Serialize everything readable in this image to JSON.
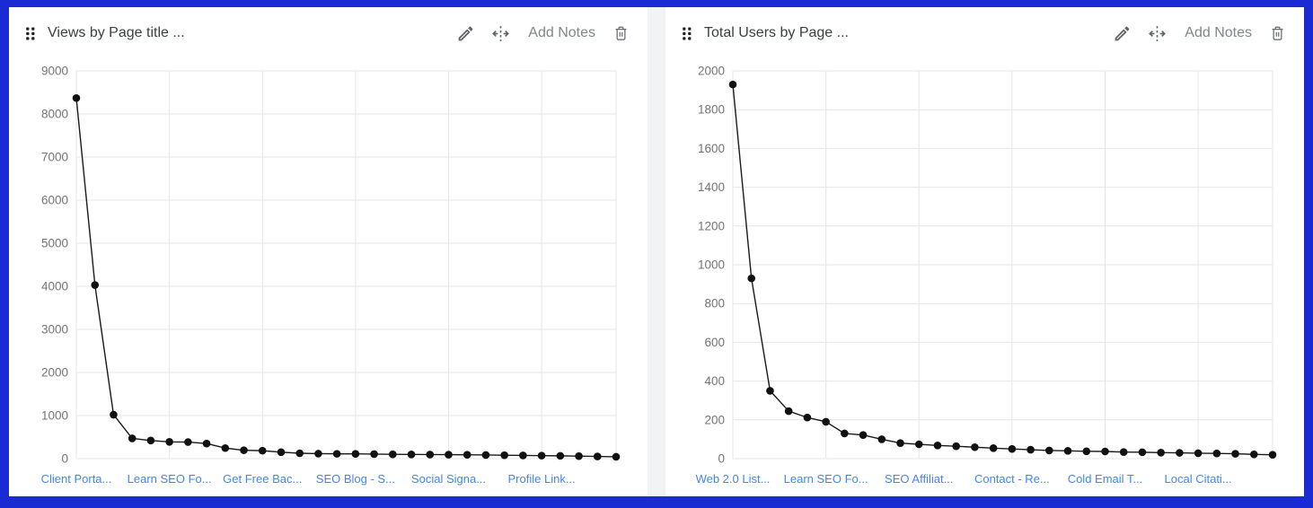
{
  "frame": {
    "border_color": "#1b2bd4",
    "canvas_color": "#f1f3f4",
    "card_color": "#ffffff"
  },
  "panels": [
    {
      "header": {
        "title": "Views by Page title ...",
        "add_notes_label": "Add Notes",
        "icons": [
          "drag-handle-icon",
          "edit-pencil-icon",
          "move-arrows-icon",
          "trash-icon"
        ],
        "title_color": "#3c4043",
        "icon_color": "#5f6368",
        "add_notes_color": "#80868b"
      },
      "chart_data": {
        "type": "line",
        "title": "Views by Page title ...",
        "xlabel": "",
        "ylabel": "",
        "ylim": [
          0,
          9000
        ],
        "ytick_step": 1000,
        "grid": true,
        "legend": null,
        "x_tick_labels": [
          {
            "index": 0,
            "label": "Client Porta..."
          },
          {
            "index": 5,
            "label": "Learn SEO Fo..."
          },
          {
            "index": 10,
            "label": "Get Free Bac..."
          },
          {
            "index": 15,
            "label": "SEO Blog - S..."
          },
          {
            "index": 20,
            "label": "Social Signa..."
          },
          {
            "index": 25,
            "label": "Profile Link..."
          }
        ],
        "values": [
          8370,
          4030,
          1020,
          470,
          420,
          390,
          385,
          350,
          245,
          195,
          185,
          150,
          125,
          115,
          112,
          110,
          105,
          100,
          98,
          95,
          92,
          90,
          85,
          80,
          75,
          70,
          65,
          58,
          50,
          42
        ],
        "colors": {
          "line": "#1a1a1a",
          "point": "#111111",
          "grid": "#e6e6e6",
          "tick_text": "#757575",
          "x_label_text": "#4285f4"
        }
      }
    },
    {
      "header": {
        "title": "Total Users by Page ...",
        "add_notes_label": "Add Notes",
        "icons": [
          "drag-handle-icon",
          "edit-pencil-icon",
          "move-arrows-icon",
          "trash-icon"
        ],
        "title_color": "#3c4043",
        "icon_color": "#5f6368",
        "add_notes_color": "#80868b"
      },
      "chart_data": {
        "type": "line",
        "title": "Total Users by Page ...",
        "xlabel": "",
        "ylabel": "",
        "ylim": [
          0,
          2000
        ],
        "ytick_step": 200,
        "grid": true,
        "legend": null,
        "x_tick_labels": [
          {
            "index": 0,
            "label": "Web 2.0 List..."
          },
          {
            "index": 5,
            "label": "Learn SEO Fo..."
          },
          {
            "index": 10,
            "label": "SEO Affiliat..."
          },
          {
            "index": 15,
            "label": "Contact - Re..."
          },
          {
            "index": 20,
            "label": "Cold Email T..."
          },
          {
            "index": 25,
            "label": "Local Citati..."
          }
        ],
        "values": [
          1930,
          930,
          350,
          245,
          212,
          190,
          130,
          122,
          100,
          80,
          74,
          68,
          64,
          59,
          54,
          50,
          46,
          42,
          40,
          38,
          37,
          34,
          33,
          31,
          30,
          28,
          27,
          25,
          22,
          20
        ],
        "colors": {
          "line": "#1a1a1a",
          "point": "#111111",
          "grid": "#e6e6e6",
          "tick_text": "#757575",
          "x_label_text": "#4285f4"
        }
      }
    }
  ]
}
